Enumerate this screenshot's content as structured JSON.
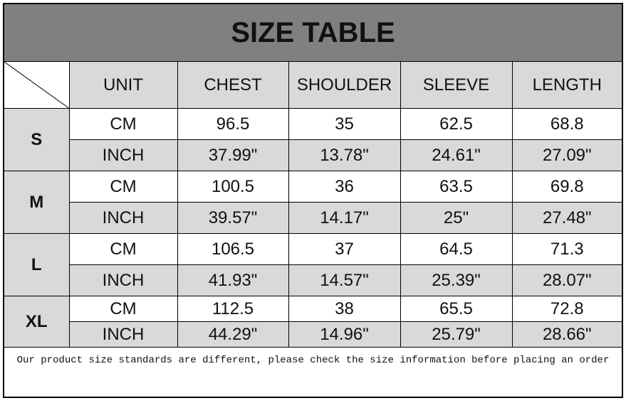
{
  "title": "SIZE TABLE",
  "headers": [
    "UNIT",
    "CHEST",
    "SHOULDER",
    "SLEEVE",
    "LENGTH"
  ],
  "rows": [
    {
      "size": "S",
      "cm": [
        "CM",
        "96.5",
        "35",
        "62.5",
        "68.8"
      ],
      "inch": [
        "INCH",
        "37.99\"",
        "13.78\"",
        "24.61\"",
        "27.09\""
      ]
    },
    {
      "size": "M",
      "cm": [
        "CM",
        "100.5",
        "36",
        "63.5",
        "69.8"
      ],
      "inch": [
        "INCH",
        "39.57\"",
        "14.17\"",
        "25\"",
        "27.48\""
      ]
    },
    {
      "size": "L",
      "cm": [
        "CM",
        "106.5",
        "37",
        "64.5",
        "71.3"
      ],
      "inch": [
        "INCH",
        "41.93\"",
        "14.57\"",
        "25.39\"",
        "28.07\""
      ]
    },
    {
      "size": "XL",
      "cm": [
        "CM",
        "112.5",
        "38",
        "65.5",
        "72.8"
      ],
      "inch": [
        "INCH",
        "44.29\"",
        "14.96\"",
        "25.79\"",
        "28.66\""
      ]
    }
  ],
  "note": "Our product size standards are different, please check the size information before placing an order",
  "colors": {
    "title_bg": "#808080",
    "label_bg": "#d9d9d9"
  }
}
